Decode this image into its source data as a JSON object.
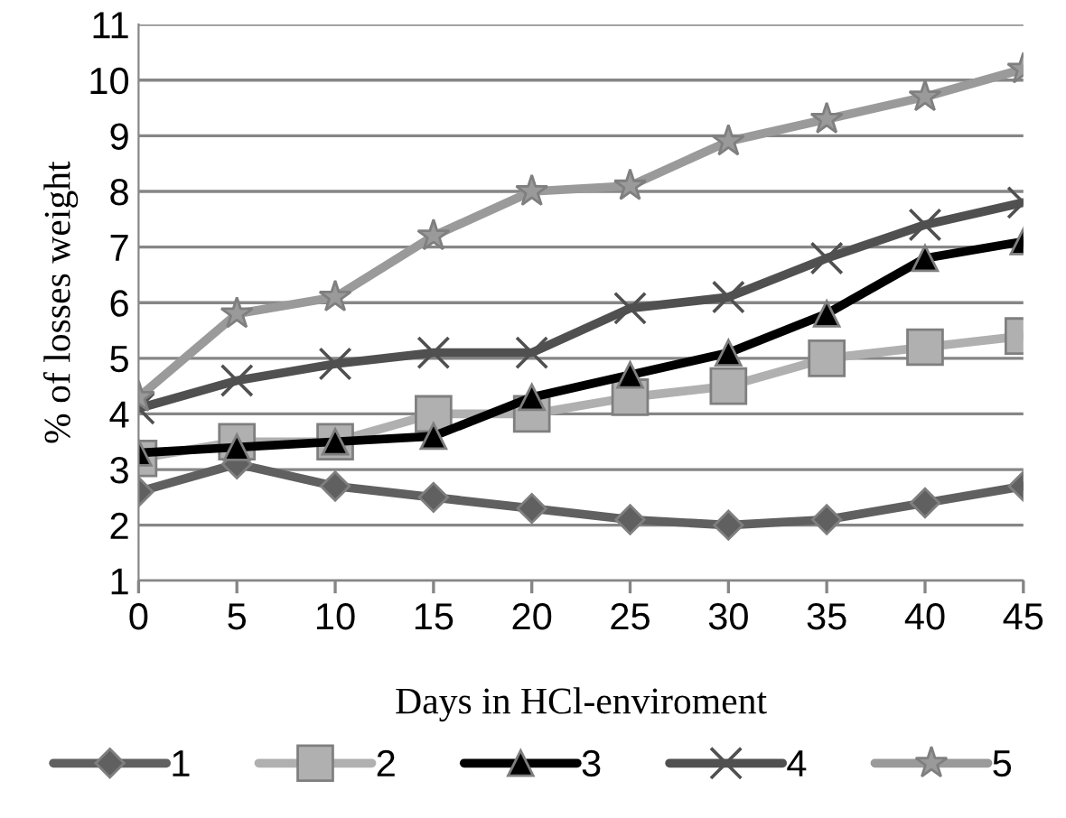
{
  "chart_data": {
    "type": "line",
    "xlabel": "Days in HCl-enviroment",
    "ylabel": "% of losses weight",
    "x": [
      0,
      5,
      10,
      15,
      20,
      25,
      30,
      35,
      40,
      45
    ],
    "xlim": [
      0,
      45
    ],
    "xticks": [
      0,
      5,
      10,
      15,
      20,
      25,
      30,
      35,
      40,
      45
    ],
    "ylim": [
      1,
      11
    ],
    "yticks": [
      1,
      2,
      3,
      4,
      5,
      6,
      7,
      8,
      9,
      10,
      11
    ],
    "grid": "y",
    "legend": "bottom",
    "line_style": "solid",
    "series": [
      {
        "name": "1",
        "color": "#606060",
        "marker": "diamond",
        "values": [
          2.6,
          3.1,
          2.7,
          2.5,
          2.3,
          2.1,
          2.0,
          2.1,
          2.4,
          2.7
        ]
      },
      {
        "name": "2",
        "color": "#b0b0b0",
        "marker": "square",
        "values": [
          3.2,
          3.5,
          3.5,
          4.0,
          4.0,
          4.3,
          4.5,
          5.0,
          5.2,
          5.4
        ]
      },
      {
        "name": "3",
        "color": "#000000",
        "marker": "triangle",
        "values": [
          3.3,
          3.4,
          3.5,
          3.6,
          4.3,
          4.7,
          5.1,
          5.8,
          6.8,
          7.1
        ]
      },
      {
        "name": "4",
        "color": "#505050",
        "marker": "cross",
        "values": [
          4.1,
          4.6,
          4.9,
          5.1,
          5.1,
          5.9,
          6.1,
          6.8,
          7.4,
          7.8
        ]
      },
      {
        "name": "5",
        "color": "#9a9a9a",
        "marker": "star",
        "values": [
          4.3,
          5.8,
          6.1,
          7.2,
          8.0,
          8.1,
          8.9,
          9.3,
          9.7,
          10.2
        ]
      }
    ]
  }
}
